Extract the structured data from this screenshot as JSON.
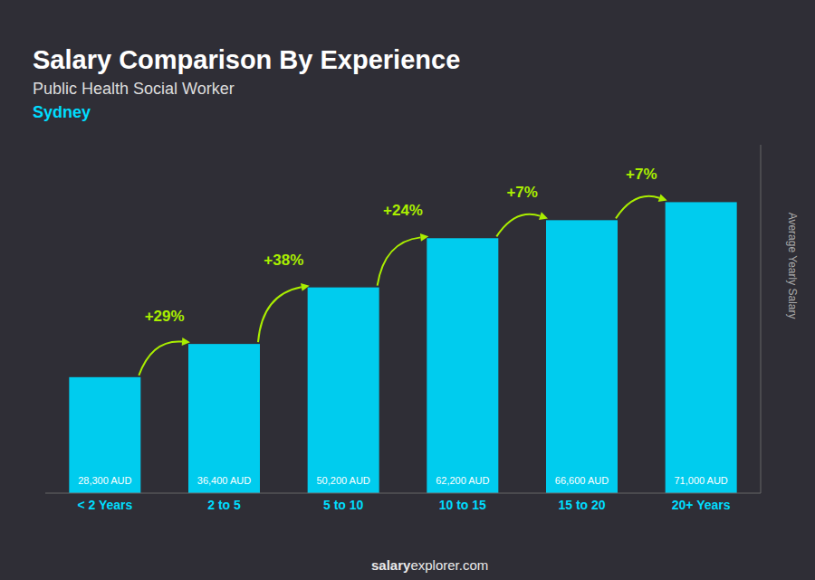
{
  "chart_data": {
    "type": "bar",
    "title": "Salary Comparison By Experience",
    "title_color": "#ffffff",
    "subtitle": "Public Health Social Worker",
    "subtitle_color": "#dddddd",
    "city": "Sydney",
    "city_color": "#00ddff",
    "categories": [
      "< 2 Years",
      "2 to 5",
      "5 to 10",
      "10 to 15",
      "15 to 20",
      "20+ Years"
    ],
    "values": [
      28300,
      36400,
      50200,
      62200,
      66600,
      71000
    ],
    "value_labels": [
      "28,300 AUD",
      "36,400 AUD",
      "50,200 AUD",
      "62,200 AUD",
      "66,600 AUD",
      "71,000 AUD"
    ],
    "data_labels": true,
    "color": "#00ccee",
    "label_color": "#ffffff",
    "xtick_color": "#00ddff",
    "ylabel": "Average Yearly Salary",
    "ylabel_color": "#aaaaaa",
    "ylim": [
      0,
      85000
    ],
    "tick_labels": "x",
    "grid": false,
    "annotations": [
      {
        "text": "+29%",
        "from": "< 2 Years",
        "to": "2 to 5",
        "color": "#aaee00"
      },
      {
        "text": "+38%",
        "from": "2 to 5",
        "to": "5 to 10",
        "color": "#aaee00"
      },
      {
        "text": "+24%",
        "from": "5 to 10",
        "to": "10 to 15",
        "color": "#aaee00"
      },
      {
        "text": "+7%",
        "from": "10 to 15",
        "to": "15 to 20",
        "color": "#aaee00"
      },
      {
        "text": "+7%",
        "from": "15 to 20",
        "to": "20+ Years",
        "color": "#aaee00"
      }
    ],
    "watermark": [
      "salary",
      "explorer.com"
    ]
  }
}
